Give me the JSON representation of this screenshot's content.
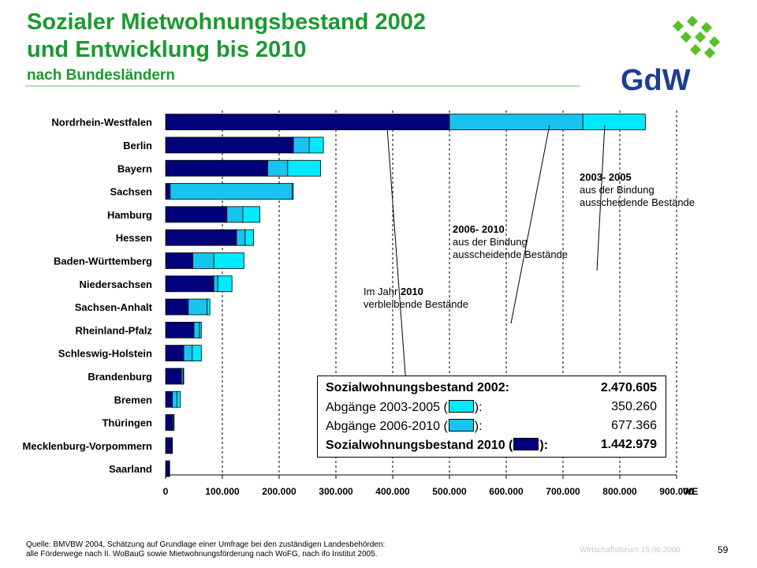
{
  "header": {
    "title_line1": "Sozialer Mietwohnungsbestand 2002",
    "title_line2": "und Entwicklung bis 2010",
    "subtitle": "nach Bundesländern",
    "logo_text": "GdW"
  },
  "colors": {
    "title": "#1a9a2f",
    "remaining_2010": "#00007a",
    "expiring_2006_2010": "#19c3f0",
    "expiring_2003_2005": "#00eaff",
    "logo_green": "#5cbf2a",
    "logo_text": "#1c3f94"
  },
  "chart_data": {
    "type": "bar",
    "orientation": "horizontal",
    "stacked": true,
    "categories": [
      "Nordrhein-Westfalen",
      "Berlin",
      "Bayern",
      "Sachsen",
      "Hamburg",
      "Hessen",
      "Baden-Württemberg",
      "Niedersachsen",
      "Sachsen-Anhalt",
      "Rheinland-Pfalz",
      "Schleswig-Holstein",
      "Brandenburg",
      "Bremen",
      "Thüringen",
      "Mecklenburg-Vorpommern",
      "Saarland"
    ],
    "series": [
      {
        "key": "remaining_2010",
        "values": [
          500000,
          225000,
          180000,
          8000,
          108000,
          125000,
          48000,
          85000,
          40000,
          50000,
          32000,
          28000,
          12000,
          12000,
          10000,
          6000
        ]
      },
      {
        "key": "expiring_2006_2010",
        "values": [
          235000,
          28000,
          35000,
          215000,
          28000,
          15000,
          37000,
          7000,
          33000,
          10000,
          15000,
          3000,
          8000,
          2000,
          1000,
          500
        ]
      },
      {
        "key": "expiring_2003_2005",
        "values": [
          110000,
          25000,
          58000,
          2000,
          30000,
          15000,
          53000,
          25000,
          5000,
          3000,
          16000,
          1000,
          6000,
          1000,
          1000,
          300
        ]
      }
    ],
    "xlim": [
      0,
      900000
    ],
    "xticks": [
      0,
      100000,
      200000,
      300000,
      400000,
      500000,
      600000,
      700000,
      800000,
      900000
    ],
    "xtick_labels": [
      "0",
      "100.000",
      "200.000",
      "300.000",
      "400.000",
      "500.000",
      "600.000",
      "700.000",
      "800.000",
      "900.000"
    ],
    "xunit": "WE",
    "grid": "vertical dashed",
    "legend": {
      "rows": [
        {
          "label": "Sozialwohnungsbestand 2002",
          "colon": ":",
          "value": "2.470.605",
          "bold": true,
          "swatch": null
        },
        {
          "label": "Abgänge 2003-2005 (",
          "colon": "):",
          "value": "350.260",
          "bold": false,
          "swatch": "expiring_2003_2005"
        },
        {
          "label": "Abgänge 2006-2010 (",
          "colon": "):",
          "value": "677.366",
          "bold": false,
          "swatch": "expiring_2006_2010"
        },
        {
          "label": "Sozialwohnungsbestand 2010 (",
          "colon": "):",
          "value": "1.442.979",
          "bold": true,
          "swatch": "remaining_2010"
        }
      ]
    },
    "annotations": [
      {
        "id": "ann-2003",
        "bold": "2003- 2005",
        "line2": "aus der Bindung",
        "line3": "ausscheidende Bestände"
      },
      {
        "id": "ann-2006",
        "bold": "2006- 2010",
        "line2": "aus der Bindung",
        "line3": "ausscheidende Bestände"
      },
      {
        "id": "ann-2010",
        "prefix": "Im Jahr ",
        "bold": "2010",
        "line2": "verbleibende Bestände"
      }
    ]
  },
  "footer": {
    "source_line1": "Quelle: BMVBW 2004, Schätzung auf Grundlage einer Umfrage bei den zuständigen Landesbehörden:",
    "source_line2": "alle Förderwege nach II. WoBauG sowie Mietwohnungsförderung nach WoFG, nach ifo Institut 2005.",
    "event": "Wirtschaftsforum 15.06.2006",
    "page": "59"
  }
}
